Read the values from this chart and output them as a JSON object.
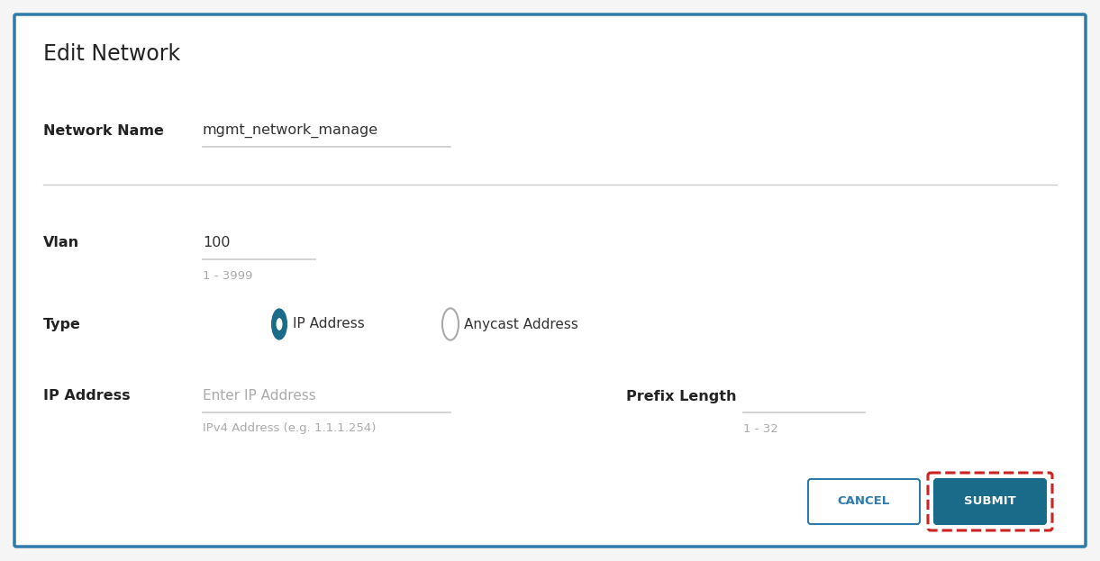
{
  "bg_color": "#f5f5f5",
  "panel_color": "#ffffff",
  "outer_border_color": "#2e7aab",
  "outer_border_linewidth": 2.5,
  "title": "Edit Network",
  "title_fontsize": 17,
  "title_color": "#222222",
  "label_color": "#222222",
  "label_fontsize": 11.5,
  "value_color": "#333333",
  "value_fontsize": 11.5,
  "hint_color": "#aaaaaa",
  "hint_fontsize": 9.5,
  "placeholder_color": "#aaaaaa",
  "placeholder_fontsize": 11,
  "field_underline_color": "#cccccc",
  "divider_color": "#cccccc",
  "network_name_label": "Network Name",
  "network_name_value": "mgmt_network_manage",
  "vlan_label": "Vlan",
  "vlan_value": "100",
  "vlan_hint": "1 - 3999",
  "type_label": "Type",
  "radio_filled_color": "#1a6a8a",
  "radio_empty_color": "#aaaaaa",
  "ip_address_radio_label": "IP Address",
  "anycast_radio_label": "Anycast Address",
  "ip_addr_label": "IP Address",
  "ip_placeholder": "Enter IP Address",
  "ip_hint": "IPv4 Address (e.g. 1.1.1.254)",
  "prefix_label": "Prefix Length",
  "prefix_hint": "1 - 32",
  "cancel_btn_text": "CANCEL",
  "cancel_btn_color": "#ffffff",
  "cancel_btn_text_color": "#2e7aab",
  "cancel_btn_border_color": "#2e7aab",
  "submit_btn_text": "SUBMIT",
  "submit_btn_color": "#1a6a8a",
  "submit_btn_text_color": "#ffffff",
  "submit_dashed_border_color": "#cc2222"
}
